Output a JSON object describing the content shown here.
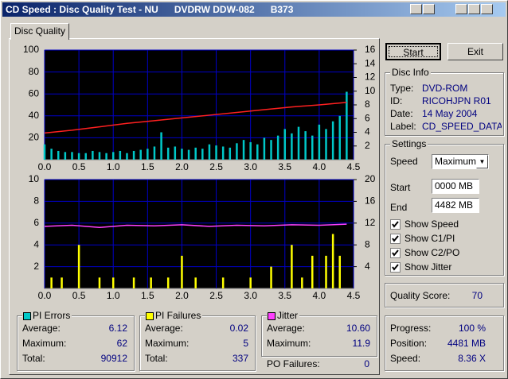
{
  "window": {
    "title": "CD Speed : Disc Quality Test - NU      DVDRW DDW-082      B373"
  },
  "tab": "Disc Quality",
  "buttons": [
    "Start",
    "Exit"
  ],
  "disc_info": {
    "title": "Disc Info",
    "rows": [
      [
        "Type:",
        "DVD-ROM"
      ],
      [
        "ID:",
        "RICOHJPN R01"
      ],
      [
        "Date:",
        "14 May 2004"
      ],
      [
        "Label:",
        "CD_SPEED_DATA"
      ]
    ]
  },
  "settings": {
    "title": "Settings",
    "speed_label": "Speed",
    "speed_value": "Maximum",
    "start_label": "Start",
    "start_value": "0000 MB",
    "end_label": "End",
    "end_value": "4482 MB",
    "checks": [
      "Show Speed",
      "Show C1/PI",
      "Show C2/PO",
      "Show Jitter"
    ]
  },
  "quality": {
    "label": "Quality Score:",
    "value": 70
  },
  "progress": [
    [
      "Progress:",
      "100 %"
    ],
    [
      "Position:",
      "4481 MB"
    ],
    [
      "Speed:",
      "8.36 X"
    ]
  ],
  "stats": [
    {
      "title": "PI Errors",
      "rows": [
        [
          "Average:",
          6.12
        ],
        [
          "Maximum:",
          62
        ],
        [
          "Total:",
          90912
        ]
      ]
    },
    {
      "title": "PI Failures",
      "rows": [
        [
          "Average:",
          0.02
        ],
        [
          "Maximum:",
          5
        ],
        [
          "Total:",
          337
        ]
      ]
    },
    {
      "title": "Jitter",
      "rows": [
        [
          "Average:",
          "10.60"
        ],
        [
          "Maximum:",
          11.9
        ]
      ]
    }
  ],
  "po_failures": {
    "label": "PO Failures:",
    "value": 0
  },
  "chart_data": [
    {
      "type": "bar",
      "xlim": [
        0,
        4.5
      ],
      "xticks": [
        {
          "value": 0,
          "label": "0.0"
        },
        0.5,
        {
          "value": 1,
          "label": "1.0"
        },
        1.5,
        {
          "value": 2,
          "label": "2.0"
        },
        2.5,
        {
          "value": 3,
          "label": "3.0"
        },
        3.5,
        {
          "value": 4,
          "label": "4.0"
        },
        4.5
      ],
      "ylim": [
        0,
        100
      ],
      "yticks": [
        20,
        40,
        60,
        80,
        100
      ],
      "y2lim": [
        0,
        16
      ],
      "y2ticks": [
        2,
        4,
        6,
        8,
        10,
        12,
        14,
        16
      ],
      "grid": true,
      "series": [
        {
          "name": "PI Errors",
          "type": "bar",
          "color": "#00c8c8",
          "x": [
            0,
            0.1,
            0.2,
            0.3,
            0.4,
            0.5,
            0.6,
            0.7,
            0.8,
            0.9,
            1,
            1.1,
            1.2,
            1.3,
            1.4,
            1.5,
            1.6,
            1.7,
            1.8,
            1.9,
            2,
            2.1,
            2.2,
            2.3,
            2.4,
            2.5,
            2.6,
            2.7,
            2.8,
            2.9,
            3,
            3.1,
            3.2,
            3.3,
            3.4,
            3.5,
            3.6,
            3.7,
            3.8,
            3.9,
            4,
            4.1,
            4.2,
            4.3,
            4.4
          ],
          "values": [
            14,
            10,
            8,
            7,
            7,
            6,
            6,
            8,
            7,
            6,
            7,
            8,
            6,
            8,
            9,
            10,
            12,
            25,
            11,
            12,
            10,
            9,
            11,
            10,
            14,
            13,
            12,
            11,
            15,
            18,
            16,
            14,
            20,
            18,
            22,
            28,
            24,
            30,
            26,
            22,
            32,
            28,
            35,
            40,
            62
          ]
        },
        {
          "type": "line",
          "axis": "y2",
          "color": "#ff2020",
          "x": [
            0,
            0.4,
            0.8,
            1.2,
            1.6,
            2,
            2.4,
            2.8,
            3.2,
            3.6,
            4,
            4.4
          ],
          "values": [
            3.9,
            4.3,
            4.8,
            5.3,
            5.7,
            6.1,
            6.5,
            6.9,
            7.3,
            7.7,
            8.0,
            8.36
          ]
        }
      ]
    },
    {
      "type": "bar",
      "xlim": [
        0,
        4.5
      ],
      "xticks": [
        {
          "value": 0,
          "label": "0.0"
        },
        0.5,
        {
          "value": 1,
          "label": "1.0"
        },
        1.5,
        {
          "value": 2,
          "label": "2.0"
        },
        2.5,
        {
          "value": 3,
          "label": "3.0"
        },
        3.5,
        {
          "value": 4,
          "label": "4.0"
        },
        4.5
      ],
      "ylim": [
        0,
        10
      ],
      "yticks": [
        2,
        4,
        6,
        8,
        10
      ],
      "y2lim": [
        0,
        20
      ],
      "y2ticks": [
        4,
        8,
        12,
        16,
        20
      ],
      "grid": true,
      "series": [
        {
          "name": "PI Failures",
          "type": "bar",
          "color": "#ffff00",
          "x": [
            0.1,
            0.25,
            0.5,
            0.8,
            1.0,
            1.3,
            1.55,
            1.8,
            2.0,
            2.2,
            2.6,
            3.0,
            3.3,
            3.6,
            3.75,
            3.9,
            4.1,
            4.2,
            4.3
          ],
          "values": [
            1,
            1,
            4,
            1,
            1,
            1,
            1,
            1,
            3,
            1,
            1,
            1,
            2,
            4,
            1,
            3,
            3,
            5,
            3
          ]
        },
        {
          "name": "Jitter",
          "type": "line",
          "axis": "y2",
          "color": "#ff40ff",
          "x": [
            0,
            0.4,
            0.8,
            1.2,
            1.6,
            2,
            2.4,
            2.8,
            3.2,
            3.6,
            4,
            4.4
          ],
          "values": [
            11.4,
            11.6,
            11.2,
            11.6,
            11.5,
            11.7,
            11.4,
            11.6,
            11.5,
            11.7,
            11.6,
            11.8
          ]
        }
      ]
    }
  ]
}
